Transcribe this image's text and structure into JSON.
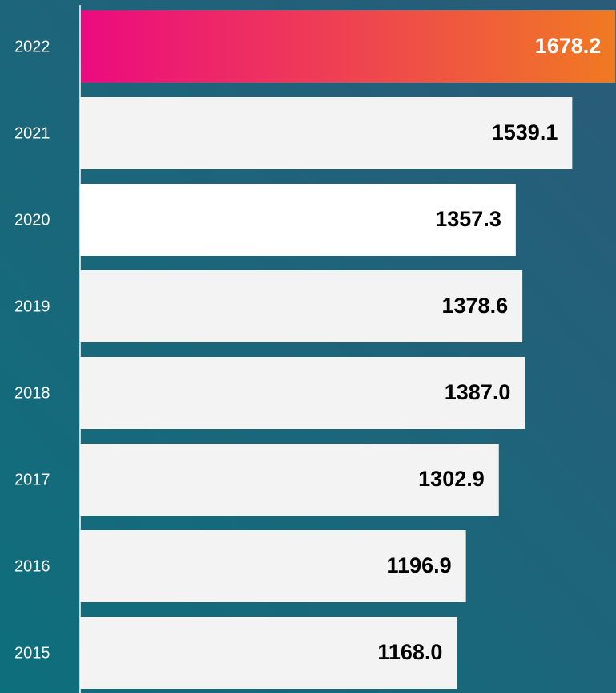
{
  "chart_data": {
    "type": "bar",
    "orientation": "horizontal",
    "categories": [
      "2022",
      "2021",
      "2020",
      "2019",
      "2018",
      "2017",
      "2016",
      "2015"
    ],
    "values": [
      1678.2,
      1539.1,
      1357.3,
      1378.6,
      1387.0,
      1302.9,
      1196.9,
      1168.0
    ],
    "value_labels": [
      "1678.2",
      "1539.1",
      "1357.3",
      "1378.6",
      "1387.0",
      "1302.9",
      "1196.9",
      "1168.0"
    ],
    "colors": [
      [
        "#ec0a80",
        "#f07a22"
      ],
      "#f3f3f3",
      "#ffffff",
      "#f3f3f3",
      "#f3f3f3",
      "#f3f3f3",
      "#f3f3f3",
      "#f3f3f3"
    ],
    "label_colors": [
      "#ffffff",
      "#000000",
      "#000000",
      "#000000",
      "#000000",
      "#000000",
      "#000000",
      "#000000"
    ],
    "xlim": [
      -45,
      1680
    ]
  }
}
